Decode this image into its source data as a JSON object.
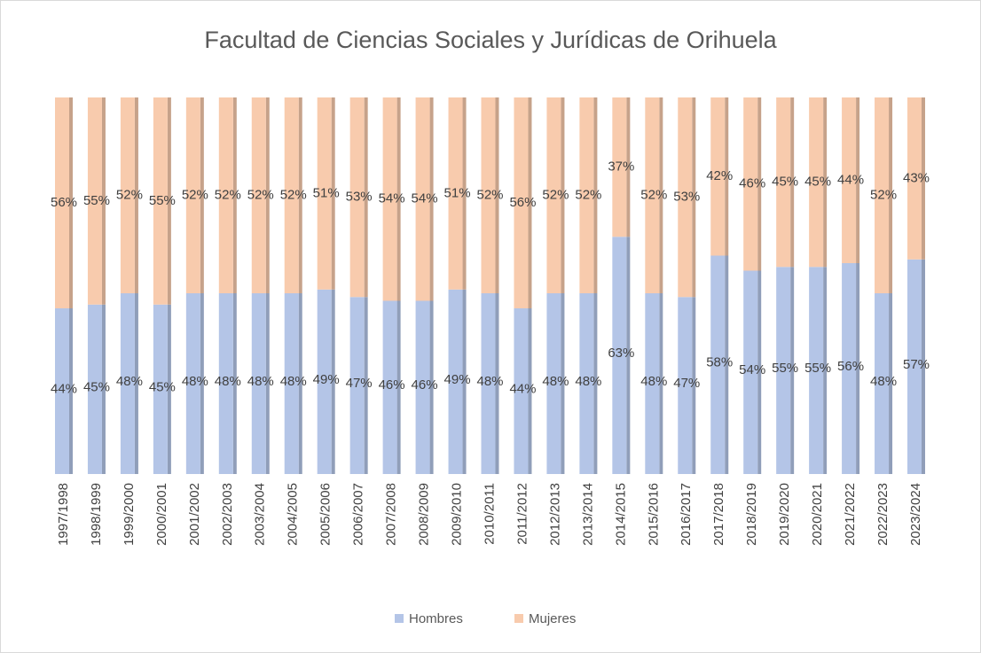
{
  "chart_data": {
    "type": "bar",
    "stacked": true,
    "title": "Facultad de Ciencias Sociales y Jurídicas de Orihuela",
    "categories": [
      "1997/1998",
      "1998/1999",
      "1999/2000",
      "2000/2001",
      "2001/2002",
      "2002/2003",
      "2003/2004",
      "2004/2005",
      "2005/2006",
      "2006/2007",
      "2007/2008",
      "2008/2009",
      "2009/2010",
      "2010/2011",
      "2011/2012",
      "2012/2013",
      "2013/2014",
      "2014/2015",
      "2015/2016",
      "2016/2017",
      "2017/2018",
      "2018/2019",
      "2019/2020",
      "2020/2021",
      "2021/2022",
      "2022/2023",
      "2023/2024"
    ],
    "series": [
      {
        "name": "Hombres",
        "color": "#b4c5e7",
        "values": [
          44,
          45,
          48,
          45,
          48,
          48,
          48,
          48,
          49,
          47,
          46,
          46,
          49,
          48,
          44,
          48,
          48,
          63,
          48,
          47,
          58,
          54,
          55,
          55,
          56,
          48,
          57
        ],
        "value_labels": [
          "44%",
          "45%",
          "48%",
          "45%",
          "48%",
          "48%",
          "48%",
          "48%",
          "49%",
          "47%",
          "46%",
          "46%",
          "49%",
          "48%",
          "44%",
          "48%",
          "48%",
          "63%",
          "48%",
          "47%",
          "58%",
          "54%",
          "55%",
          "55%",
          "56%",
          "48%",
          "57%"
        ]
      },
      {
        "name": "Mujeres",
        "color": "#f8cbad",
        "values": [
          56,
          55,
          52,
          55,
          52,
          52,
          52,
          52,
          51,
          53,
          54,
          54,
          51,
          52,
          56,
          52,
          52,
          37,
          52,
          53,
          42,
          46,
          45,
          45,
          44,
          52,
          43
        ],
        "value_labels": [
          "56%",
          "55%",
          "52%",
          "55%",
          "52%",
          "52%",
          "52%",
          "52%",
          "51%",
          "53%",
          "54%",
          "54%",
          "51%",
          "52%",
          "56%",
          "52%",
          "52%",
          "37%",
          "52%",
          "53%",
          "42%",
          "46%",
          "45%",
          "45%",
          "44%",
          "52%",
          "43%"
        ]
      }
    ],
    "legend": "bottom"
  }
}
